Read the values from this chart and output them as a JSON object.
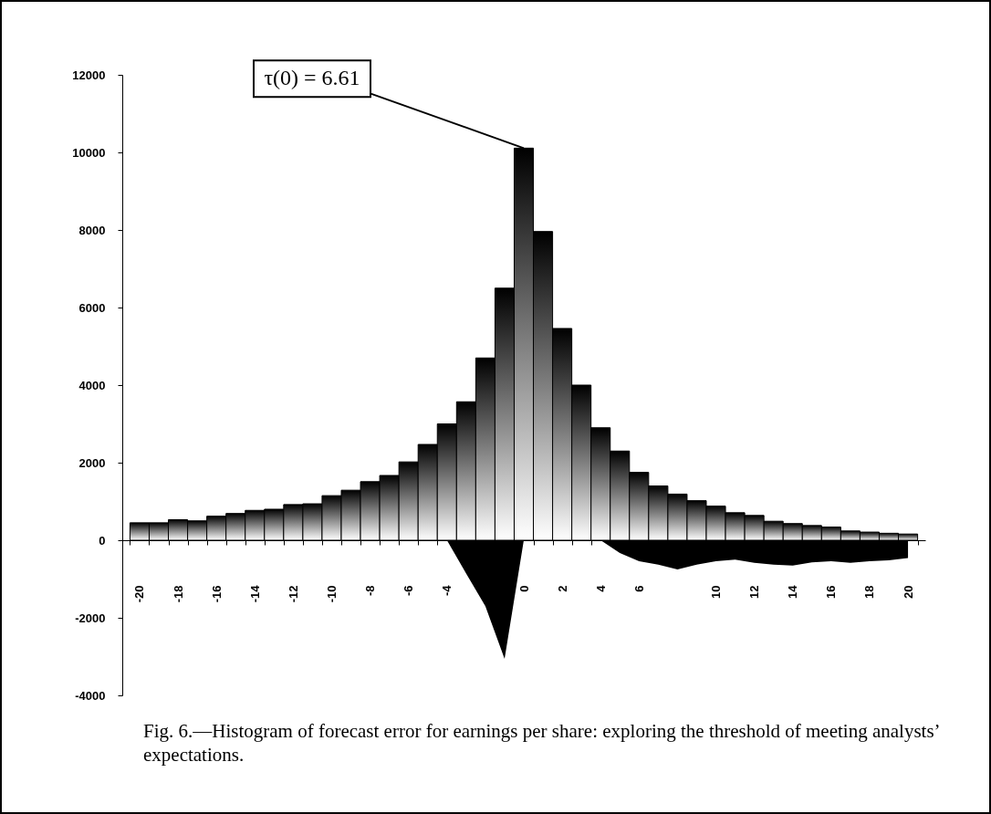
{
  "chart_data": {
    "type": "bar",
    "categories": [
      "-20",
      null,
      "-18",
      null,
      "-16",
      null,
      "-14",
      null,
      "-12",
      null,
      "-10",
      null,
      "-8",
      null,
      "-6",
      null,
      "-4",
      null,
      null,
      null,
      "0",
      null,
      "2",
      null,
      "4",
      null,
      "6",
      null,
      null,
      null,
      "10",
      null,
      "12",
      null,
      "14",
      null,
      "16",
      null,
      "18",
      null,
      "20"
    ],
    "series": [
      {
        "color": "#000000",
        "values": [
          450,
          450,
          530,
          500,
          620,
          690,
          770,
          800,
          920,
          940,
          1150,
          1290,
          1510,
          1670,
          2020,
          2470,
          3000,
          3570,
          4700,
          6500,
          10110,
          7960,
          5460,
          4000,
          2900,
          2300,
          1750,
          1400,
          1190,
          1020,
          880,
          710,
          640,
          490,
          430,
          380,
          340,
          240,
          210,
          180,
          160
        ]
      },
      {
        "type": "area",
        "color": "#000000",
        "values": [
          null,
          null,
          null,
          null,
          null,
          null,
          null,
          null,
          null,
          null,
          null,
          null,
          null,
          null,
          null,
          null,
          0,
          -860,
          -1700,
          -3060,
          0,
          0,
          0,
          0,
          0,
          -330,
          -540,
          -630,
          -750,
          -630,
          -540,
          -500,
          -580,
          -630,
          -650,
          -570,
          -540,
          -580,
          -540,
          -520,
          -460
        ]
      }
    ],
    "ylim": [
      -4000,
      12000
    ],
    "yticks": [
      -4000,
      -2000,
      0,
      2000,
      4000,
      6000,
      8000,
      10000,
      12000
    ],
    "annotations": [
      {
        "text": "τ(0) = 6.61",
        "x": "0",
        "y": 10110
      },
      "Fig. 6.—Histogram of forecast error for earnings per share: exploring the threshold of meeting analysts’ expectations."
    ]
  }
}
